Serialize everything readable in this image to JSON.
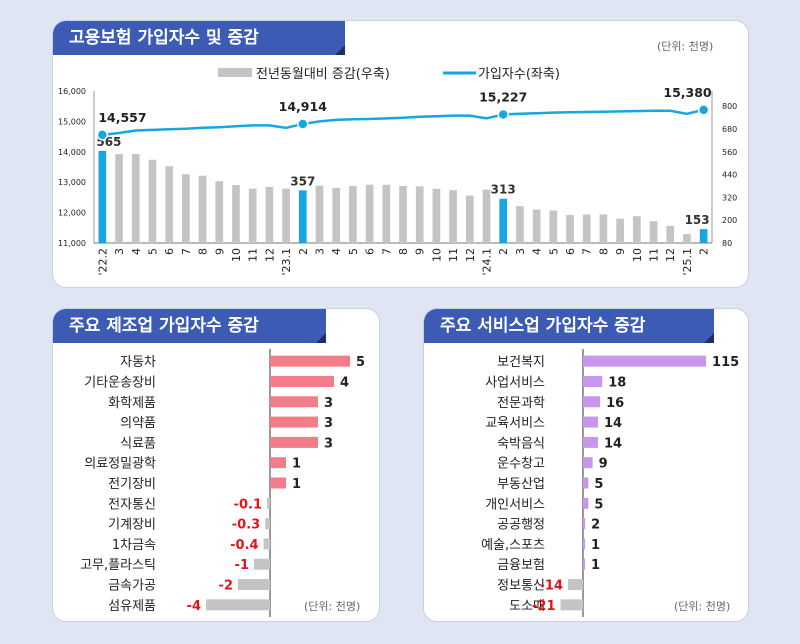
{
  "top": {
    "title": "고용보험 가입자수 및 증감",
    "unit": "(단위: 천명)",
    "legend_bar": "전년동월대비 증감(우축)",
    "legend_line": "가입자수(좌축)"
  },
  "mfg": {
    "title": "주요 제조업 가입자수 증감",
    "unit": "(단위: 천명)"
  },
  "svc": {
    "title": "주요 서비스업 가입자수 증감",
    "unit": "(단위: 천명)"
  },
  "colors": {
    "bar_gray": "#c4c4c4",
    "bar_blue": "#16a7e2",
    "line": "#17a6e0",
    "mfg_pos": "#f27c87",
    "svc_pos": "#c996ee",
    "neg_label": "#e0161a"
  },
  "chart_data": [
    {
      "type": "bar+line",
      "x_labels": [
        "'22.2",
        "3",
        "4",
        "5",
        "6",
        "7",
        "8",
        "9",
        "10",
        "11",
        "12",
        "'23.1",
        "2",
        "3",
        "4",
        "5",
        "6",
        "7",
        "8",
        "9",
        "10",
        "11",
        "12",
        "'24.1",
        "2",
        "3",
        "4",
        "5",
        "6",
        "7",
        "8",
        "9",
        "10",
        "11",
        "12",
        "'25.1",
        "2"
      ],
      "bar_values": [
        565,
        548,
        548,
        518,
        484,
        442,
        434,
        405,
        385,
        366,
        375,
        366,
        357,
        382,
        370,
        381,
        387,
        386,
        380,
        378,
        365,
        358,
        330,
        361,
        313,
        274,
        256,
        251,
        227,
        230,
        230,
        208,
        221,
        195,
        170,
        127,
        153
      ],
      "bar_highlight_index": [
        0,
        12,
        24,
        36
      ],
      "bar_labels": [
        {
          "index": 0,
          "text": "565"
        },
        {
          "index": 12,
          "text": "357"
        },
        {
          "index": 24,
          "text": "313"
        },
        {
          "index": 36,
          "text": "153"
        }
      ],
      "line_values": [
        14557,
        14620,
        14700,
        14720,
        14740,
        14760,
        14790,
        14810,
        14840,
        14870,
        14870,
        14790,
        14914,
        15000,
        15050,
        15070,
        15080,
        15100,
        15120,
        15150,
        15170,
        15190,
        15190,
        15100,
        15227,
        15250,
        15270,
        15290,
        15300,
        15310,
        15320,
        15330,
        15340,
        15350,
        15350,
        15250,
        15380
      ],
      "line_labels": [
        {
          "index": 0,
          "text": "14,557"
        },
        {
          "index": 12,
          "text": "14,914"
        },
        {
          "index": 24,
          "text": "15,227"
        },
        {
          "index": 36,
          "text": "15,380"
        }
      ],
      "left_axis": {
        "min": 11000,
        "max": 16000,
        "ticks": [
          "11,000",
          "12,000",
          "13,000",
          "14,000",
          "15,000",
          "16,000"
        ]
      },
      "right_axis": {
        "min": 80,
        "max": 880,
        "ticks": [
          "80",
          "200",
          "320",
          "440",
          "560",
          "680",
          "800"
        ]
      }
    },
    {
      "type": "bar",
      "orientation": "horizontal",
      "categories": [
        "자동차",
        "기타운송장비",
        "화학제품",
        "의약품",
        "식료품",
        "의료정밀광학",
        "전기장비",
        "전자통신",
        "기계장비",
        "1차금속",
        "고무,플라스틱",
        "금속가공",
        "섬유제품"
      ],
      "values": [
        5,
        4,
        3,
        3,
        3,
        1,
        1,
        -0.1,
        -0.3,
        -0.4,
        -1,
        -2,
        -4
      ],
      "labels": [
        "5",
        "4",
        "3",
        "3",
        "3",
        "1",
        "1",
        "-0.1",
        "-0.3",
        "-0.4",
        "-1",
        "-2",
        "-4"
      ]
    },
    {
      "type": "bar",
      "orientation": "horizontal",
      "categories": [
        "보건복지",
        "사업서비스",
        "전문과학",
        "교육서비스",
        "숙박음식",
        "운수창고",
        "부동산업",
        "개인서비스",
        "공공행정",
        "예술,스포츠",
        "금융보험",
        "정보통신",
        "도소매"
      ],
      "values": [
        115,
        18,
        16,
        14,
        14,
        9,
        5,
        5,
        2,
        1,
        1,
        -14,
        -21
      ],
      "labels": [
        "115",
        "18",
        "16",
        "14",
        "14",
        "9",
        "5",
        "5",
        "2",
        "1",
        "1",
        "-14",
        "-21"
      ]
    }
  ]
}
